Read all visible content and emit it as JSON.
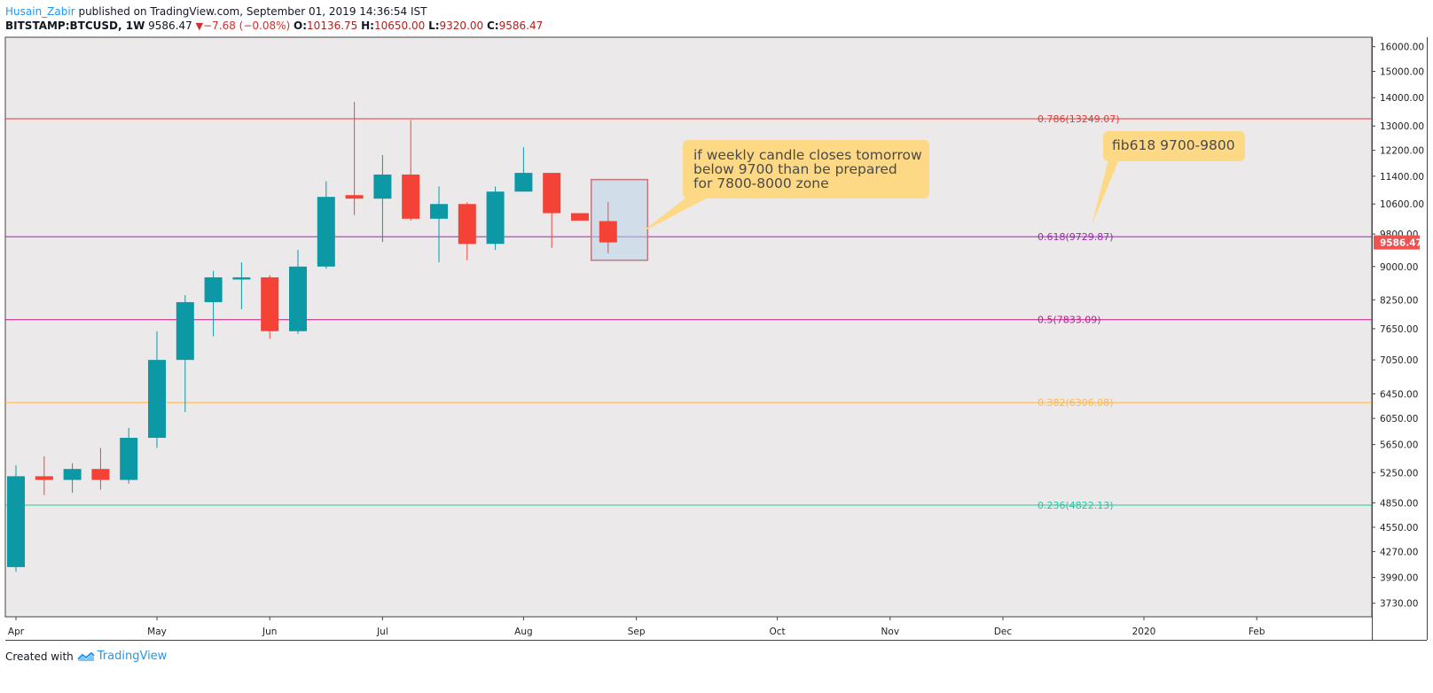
{
  "header": {
    "author": "Husain_Zabir",
    "published_text": " published on TradingView.com, September 01, 2019 14:36:54 IST"
  },
  "symbol_bar": {
    "symbol": "BITSTAMP:BTCUSD, 1W",
    "last": "9586.47",
    "change": "−7.68 (−0.08%)",
    "o_label": "O:",
    "o_value": "10136.75",
    "h_label": "H:",
    "h_value": "10650.00",
    "l_label": "L:",
    "l_value": "9320.00",
    "c_label": "C:",
    "c_value": "9586.47"
  },
  "footer": {
    "created_with": "Created with",
    "brand": "TradingView"
  },
  "colors": {
    "bull": "#0c99a5",
    "bear": "#f44336",
    "background": "#ebe9ea",
    "price_tag": "#ef5350",
    "annotation": "#fdd986"
  },
  "chart_data": {
    "type": "candlestick",
    "timeframe": "1W",
    "y_scale": "log",
    "ylim": [
      3600,
      16400
    ],
    "y_ticks": [
      16000,
      15000,
      14000,
      13000,
      12200,
      11400,
      10600,
      9800,
      9000,
      8250,
      7650,
      7050,
      6450,
      6050,
      5650,
      5250,
      4850,
      4550,
      4270,
      3990,
      3730
    ],
    "x_labels": [
      "Apr",
      "May",
      "Jun",
      "Jul",
      "Aug",
      "Sep",
      "Oct",
      "Nov",
      "Dec",
      "2020",
      "Feb"
    ],
    "x_label_weeks": [
      0,
      5,
      9,
      13,
      18,
      22,
      27,
      31,
      35,
      40,
      44
    ],
    "last_price_label": "9586.47",
    "last_price": 9586.47,
    "candles": [
      {
        "date": "2019-04-01",
        "o": 4100,
        "h": 5350,
        "l": 4050,
        "c": 5200
      },
      {
        "date": "2019-04-08",
        "o": 5200,
        "h": 5480,
        "l": 4950,
        "c": 5150
      },
      {
        "date": "2019-04-15",
        "o": 5150,
        "h": 5380,
        "l": 4980,
        "c": 5300
      },
      {
        "date": "2019-04-22",
        "o": 5300,
        "h": 5600,
        "l": 5020,
        "c": 5150
      },
      {
        "date": "2019-04-29",
        "o": 5150,
        "h": 5900,
        "l": 5100,
        "c": 5750
      },
      {
        "date": "2019-05-06",
        "o": 5750,
        "h": 7600,
        "l": 5600,
        "c": 7050
      },
      {
        "date": "2019-05-13",
        "o": 7050,
        "h": 8350,
        "l": 6150,
        "c": 8200
      },
      {
        "date": "2019-05-20",
        "o": 8200,
        "h": 8900,
        "l": 7500,
        "c": 8750
      },
      {
        "date": "2019-05-27",
        "o": 8700,
        "h": 9100,
        "l": 8050,
        "c": 8750
      },
      {
        "date": "2019-06-03",
        "o": 8750,
        "h": 8800,
        "l": 7450,
        "c": 7600
      },
      {
        "date": "2019-06-10",
        "o": 7600,
        "h": 9400,
        "l": 7550,
        "c": 9000
      },
      {
        "date": "2019-06-17",
        "o": 9000,
        "h": 11250,
        "l": 8950,
        "c": 10800
      },
      {
        "date": "2019-06-24",
        "o": 10850,
        "h": 13850,
        "l": 10300,
        "c": 10750
      },
      {
        "date": "2019-07-01",
        "o": 10750,
        "h": 12050,
        "l": 9600,
        "c": 11450
      },
      {
        "date": "2019-07-08",
        "o": 11450,
        "h": 13200,
        "l": 10150,
        "c": 10200
      },
      {
        "date": "2019-07-15",
        "o": 10200,
        "h": 11100,
        "l": 9100,
        "c": 10600
      },
      {
        "date": "2019-07-22",
        "o": 10600,
        "h": 10650,
        "l": 9150,
        "c": 9550
      },
      {
        "date": "2019-07-29",
        "o": 9550,
        "h": 11100,
        "l": 9400,
        "c": 10950
      },
      {
        "date": "2019-08-05",
        "o": 10950,
        "h": 12300,
        "l": 10950,
        "c": 11500
      },
      {
        "date": "2019-08-12",
        "o": 11500,
        "h": 11500,
        "l": 9450,
        "c": 10350
      },
      {
        "date": "2019-08-19",
        "o": 10350,
        "h": 10350,
        "l": 10150,
        "c": 10150
      },
      {
        "date": "2019-08-26",
        "o": 10136.75,
        "h": 10650,
        "l": 9320,
        "c": 9586.47
      }
    ],
    "fib_levels": [
      {
        "label": "0.786(13249.07)",
        "value": 13249.07,
        "color": "#e53935"
      },
      {
        "label": "0.618(9729.87)",
        "value": 9729.87,
        "color": "#9c27b0"
      },
      {
        "label": "0.5(7833.09)",
        "value": 7833.09,
        "color": "#c2188b"
      },
      {
        "label": "0.382(6306.08)",
        "value": 6306.08,
        "color": "#ffb74d"
      },
      {
        "label": "0.236(4822.13)",
        "value": 4822.13,
        "color": "#26c6a0"
      }
    ],
    "highlight_box": {
      "week_start": 20.4,
      "week_end": 22.4,
      "price_top": 11300,
      "price_bottom": 9150
    },
    "annotations": [
      {
        "lines": [
          "if weekly candle closes tomorrow",
          "below 9700 than be prepared",
          "for 7800-8000 zone"
        ]
      },
      {
        "lines": [
          "fib618 9700-9800"
        ]
      }
    ]
  }
}
